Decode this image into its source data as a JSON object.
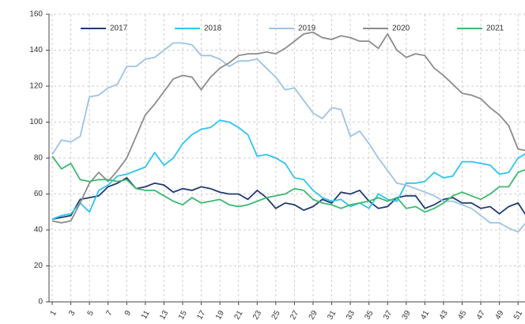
{
  "chart_data": {
    "type": "line",
    "x": [
      1,
      2,
      3,
      4,
      5,
      6,
      7,
      8,
      9,
      10,
      11,
      12,
      13,
      14,
      15,
      16,
      17,
      18,
      19,
      20,
      21,
      22,
      23,
      24,
      25,
      26,
      27,
      28,
      29,
      30,
      31,
      32,
      33,
      34,
      35,
      36,
      37,
      38,
      39,
      40,
      41,
      42,
      43,
      44,
      45,
      46,
      47,
      48,
      49,
      50,
      51,
      52
    ],
    "xlim": [
      1,
      52
    ],
    "xticks": [
      1,
      3,
      5,
      7,
      9,
      11,
      13,
      15,
      17,
      19,
      21,
      23,
      25,
      27,
      29,
      31,
      33,
      35,
      37,
      39,
      41,
      43,
      45,
      47,
      49,
      51
    ],
    "ylim": [
      0,
      160
    ],
    "yticks": [
      0,
      20,
      40,
      60,
      80,
      100,
      120,
      140,
      160
    ],
    "grid": true,
    "legend": "top",
    "series": [
      {
        "name": "2017",
        "color": "#1f3b73",
        "values": [
          46,
          47,
          48,
          57,
          58,
          59,
          64,
          66,
          69,
          63,
          64,
          66,
          65,
          61,
          63,
          62,
          64,
          63,
          61,
          60,
          60,
          57,
          62,
          58,
          52,
          55,
          54,
          51,
          53,
          57,
          55,
          61,
          60,
          62,
          56,
          52,
          53,
          58,
          59,
          59,
          52,
          54,
          57,
          58,
          55,
          55,
          52,
          53,
          49,
          53,
          55,
          47
        ]
      },
      {
        "name": "2018",
        "color": "#2ec4f0",
        "values": [
          46,
          48,
          49,
          55,
          50,
          62,
          65,
          70,
          71,
          73,
          75,
          83,
          76,
          80,
          88,
          93,
          96,
          97,
          101,
          100,
          97,
          93,
          81,
          82,
          80,
          77,
          69,
          68,
          62,
          58,
          56,
          57,
          53,
          55,
          52,
          60,
          57,
          56,
          66,
          66,
          67,
          72,
          69,
          70,
          78,
          78,
          77,
          76,
          71,
          72,
          80,
          83
        ]
      },
      {
        "name": "2019",
        "color": "#9dc3e6",
        "values": [
          82,
          90,
          89,
          92,
          114,
          115,
          119,
          121,
          131,
          131,
          135,
          136,
          140,
          144,
          144,
          143,
          137,
          137,
          135,
          131,
          134,
          134,
          135,
          130,
          125,
          118,
          119,
          112,
          105,
          102,
          108,
          107,
          92,
          95,
          88,
          80,
          73,
          66,
          65,
          63,
          61,
          59,
          56,
          56,
          54,
          52,
          48,
          44,
          44,
          41,
          39,
          45
        ]
      },
      {
        "name": "2020",
        "color": "#8c8c8c",
        "values": [
          45,
          44,
          45,
          55,
          66,
          72,
          67,
          73,
          80,
          92,
          104,
          110,
          117,
          124,
          126,
          125,
          118,
          125,
          130,
          133,
          137,
          138,
          138,
          139,
          138,
          141,
          145,
          149,
          150,
          147,
          146,
          148,
          147,
          145,
          145,
          141,
          149,
          140,
          136,
          138,
          137,
          130,
          126,
          121,
          116,
          115,
          113,
          108,
          104,
          98,
          85,
          84
        ]
      },
      {
        "name": "2021",
        "color": "#3cb96f",
        "values": [
          81,
          74,
          77,
          68,
          67,
          68,
          68,
          67,
          68,
          63,
          62,
          62,
          59,
          56,
          54,
          58,
          55,
          56,
          57,
          54,
          53,
          54,
          56,
          58,
          59,
          60,
          63,
          62,
          57,
          55,
          54,
          52,
          54,
          55,
          56,
          58,
          56,
          58,
          52,
          53,
          50,
          52,
          55,
          59,
          61,
          59,
          57,
          60,
          64,
          64,
          72,
          74
        ]
      }
    ]
  }
}
